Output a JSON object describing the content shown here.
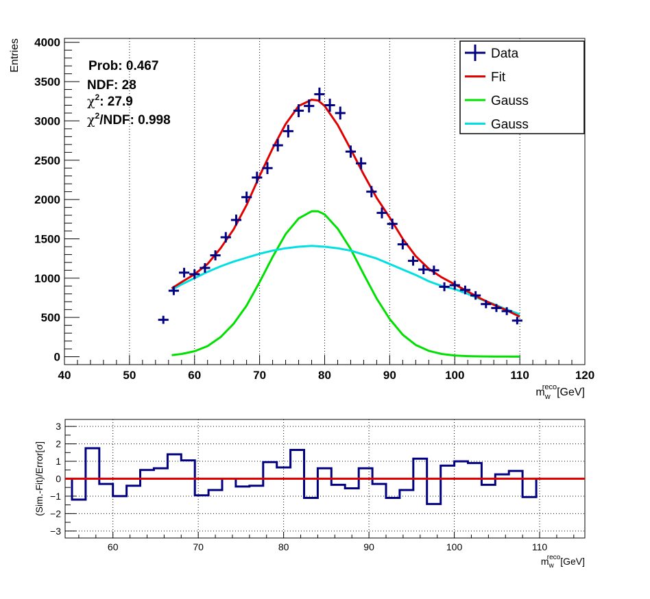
{
  "chart_data": [
    {
      "type": "scatter",
      "id": "main",
      "xlabel_main": "m",
      "xlabel_sub": "w",
      "xlabel_sup": "reco",
      "xlabel_unit": "[GeV]",
      "ylabel": "Entries",
      "xlim": [
        40,
        120
      ],
      "ylim": [
        -100,
        4050
      ],
      "xticks": [
        40,
        50,
        60,
        70,
        80,
        90,
        100,
        110,
        120
      ],
      "yticks": [
        0,
        500,
        1000,
        1500,
        2000,
        2500,
        3000,
        3500,
        4000
      ],
      "grid_x": true,
      "grid_y": false,
      "legend_placement": "top-right",
      "stats": {
        "prob": "Prob: 0.467",
        "ndf": "NDF: 28",
        "chi2_label": "χ",
        "chi2_value": ": 27.9",
        "chi2ndf_label": "χ",
        "chi2ndf_value": "/NDF: 0.998"
      },
      "legend": [
        {
          "label": "Data",
          "color": "#000080",
          "marker": "cross"
        },
        {
          "label": "Fit",
          "color": "#e00000",
          "marker": "line"
        },
        {
          "label": "Gauss",
          "color": "#00e000",
          "marker": "line"
        },
        {
          "label": "Gauss",
          "color": "#00e0e0",
          "marker": "line"
        }
      ],
      "data_bin_width": 1.6,
      "data": {
        "x": [
          55.2,
          56.8,
          58.4,
          60.0,
          61.6,
          63.2,
          64.8,
          66.4,
          68.0,
          69.6,
          71.2,
          72.8,
          74.4,
          76.0,
          77.6,
          79.2,
          80.8,
          82.4,
          84.0,
          85.6,
          87.2,
          88.8,
          90.4,
          92.0,
          93.6,
          95.2,
          96.8,
          98.4,
          100.0,
          101.6,
          103.2,
          104.8,
          106.4,
          108.0,
          109.6
        ],
        "y": [
          470,
          840,
          1070,
          1050,
          1130,
          1290,
          1520,
          1740,
          2030,
          2280,
          2400,
          2690,
          2870,
          3130,
          3190,
          3340,
          3200,
          3100,
          2610,
          2460,
          2100,
          1830,
          1690,
          1430,
          1220,
          1110,
          1100,
          890,
          910,
          850,
          780,
          670,
          620,
          580,
          460
        ],
        "err": [
          25,
          30,
          35,
          35,
          35,
          38,
          40,
          42,
          45,
          48,
          50,
          52,
          54,
          56,
          57,
          58,
          57,
          56,
          51,
          50,
          46,
          43,
          41,
          38,
          35,
          33,
          33,
          30,
          30,
          29,
          28,
          26,
          25,
          24,
          22
        ]
      },
      "fit": {
        "color": "#e00000",
        "x": [
          56.5,
          58,
          60,
          62,
          64,
          66,
          68,
          70,
          72,
          74,
          76,
          78,
          79,
          80,
          82,
          84,
          86,
          88,
          90,
          92,
          94,
          96,
          98,
          100,
          102,
          104,
          106,
          108,
          110
        ],
        "y": [
          870,
          950,
          1050,
          1180,
          1380,
          1620,
          1930,
          2300,
          2650,
          2960,
          3190,
          3270,
          3260,
          3190,
          2950,
          2640,
          2320,
          2020,
          1770,
          1500,
          1280,
          1120,
          1010,
          920,
          830,
          740,
          660,
          590,
          510
        ]
      },
      "gauss1": {
        "color": "#00e000",
        "x": [
          56.5,
          58,
          60,
          62,
          64,
          66,
          68,
          70,
          72,
          74,
          76,
          78,
          79,
          80,
          82,
          84,
          86,
          88,
          90,
          92,
          94,
          96,
          98,
          100,
          102,
          104,
          106,
          108,
          110
        ],
        "y": [
          20,
          35,
          70,
          135,
          250,
          420,
          650,
          950,
          1270,
          1560,
          1760,
          1850,
          1850,
          1810,
          1630,
          1370,
          1050,
          740,
          480,
          280,
          150,
          75,
          35,
          15,
          8,
          5,
          3,
          2,
          1
        ]
      },
      "gauss2": {
        "color": "#00e0e0",
        "x": [
          56.5,
          58,
          60,
          62,
          64,
          66,
          68,
          70,
          72,
          74,
          76,
          78,
          80,
          82,
          84,
          86,
          88,
          90,
          92,
          94,
          96,
          98,
          100,
          102,
          104,
          106,
          108,
          110
        ],
        "y": [
          850,
          920,
          1000,
          1080,
          1150,
          1210,
          1260,
          1310,
          1350,
          1380,
          1400,
          1410,
          1400,
          1380,
          1350,
          1300,
          1250,
          1180,
          1110,
          1040,
          960,
          900,
          860,
          800,
          730,
          670,
          600,
          540
        ]
      }
    },
    {
      "type": "line",
      "id": "residual",
      "xlabel_main": "m",
      "xlabel_sub": "w",
      "xlabel_sup": "reco",
      "xlabel_unit": "[GeV]",
      "ylabel": "(Sim.-Fit)/Error[σ]",
      "xlim": [
        54.4,
        115.3
      ],
      "ylim": [
        -3.4,
        3.4
      ],
      "xticks": [
        60,
        70,
        80,
        90,
        100,
        110
      ],
      "yticks": [
        -3,
        -2,
        -1,
        0,
        1,
        2,
        3
      ],
      "grid_x": true,
      "grid_y": true,
      "step_color": "#000080",
      "zero_color": "#e00000",
      "bin_edges": [
        55.2,
        56.8,
        58.4,
        60.0,
        61.6,
        63.2,
        64.8,
        66.4,
        68.0,
        69.6,
        71.2,
        72.8,
        74.4,
        76.0,
        77.6,
        79.2,
        80.8,
        82.4,
        84.0,
        85.6,
        87.2,
        88.8,
        90.4,
        92.0,
        93.6,
        95.2,
        96.8,
        98.4,
        100.0,
        101.6,
        103.2,
        104.8,
        106.4,
        108.0
      ],
      "values": [
        -1.2,
        1.75,
        -0.3,
        -1.0,
        -0.4,
        0.5,
        0.6,
        1.4,
        1.05,
        -0.95,
        -0.65,
        0.0,
        -0.45,
        -0.4,
        0.95,
        0.65,
        1.65,
        -1.1,
        0.6,
        -0.35,
        -0.55,
        0.6,
        -0.3,
        -1.1,
        -0.65,
        1.15,
        -1.45,
        0.75,
        1.0,
        0.9,
        -0.35,
        0.25,
        0.45,
        -1.05
      ]
    }
  ]
}
